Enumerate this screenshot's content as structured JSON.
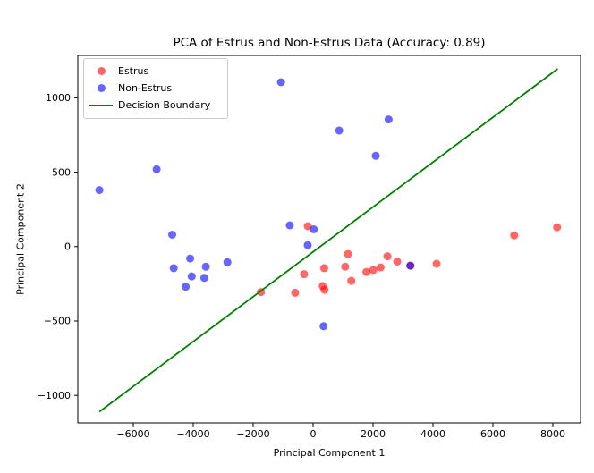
{
  "figure": {
    "background": "#ffffff"
  },
  "chart_data": {
    "type": "scatter",
    "title": "PCA of Estrus and Non-Estrus Data (Accuracy: 0.89)",
    "xlabel": "Principal Component 1",
    "ylabel": "Principal Component 2",
    "xlim": [
      -7850,
      8925
    ],
    "ylim": [
      -1185,
      1285
    ],
    "xticks": [
      -6000,
      -4000,
      -2000,
      0,
      2000,
      4000,
      6000,
      8000
    ],
    "xtick_labels": [
      "−6000",
      "−4000",
      "−2000",
      "0",
      "2000",
      "4000",
      "6000",
      "8000"
    ],
    "yticks": [
      -1000,
      -500,
      0,
      500,
      1000
    ],
    "ytick_labels": [
      "−1000",
      "−500",
      "0",
      "500",
      "1000"
    ],
    "grid": false,
    "legend_position": "upper-left",
    "marker_alpha": 0.6,
    "marker_radius": 4.5,
    "series": [
      {
        "name": "Estrus",
        "color": "#ff0000",
        "marker": "circle",
        "points": [
          [
            -1740,
            -305
          ],
          [
            -600,
            -310
          ],
          [
            -300,
            -185
          ],
          [
            -180,
            137
          ],
          [
            320,
            -265
          ],
          [
            370,
            -145
          ],
          [
            380,
            -290
          ],
          [
            1070,
            -135
          ],
          [
            1165,
            -50
          ],
          [
            1275,
            -230
          ],
          [
            1780,
            -170
          ],
          [
            2010,
            -157
          ],
          [
            2250,
            -140
          ],
          [
            2480,
            -65
          ],
          [
            2805,
            -100
          ],
          [
            3245,
            -128
          ],
          [
            4120,
            -115
          ],
          [
            6710,
            75
          ],
          [
            8140,
            130
          ]
        ]
      },
      {
        "name": "Non-Estrus",
        "color": "#0000ff",
        "marker": "circle",
        "points": [
          [
            -7130,
            380
          ],
          [
            -5220,
            520
          ],
          [
            -4700,
            80
          ],
          [
            -4650,
            -145
          ],
          [
            -4250,
            -270
          ],
          [
            -4100,
            -80
          ],
          [
            -4050,
            -200
          ],
          [
            -3630,
            -210
          ],
          [
            -3580,
            -135
          ],
          [
            -2860,
            -105
          ],
          [
            -1070,
            1105
          ],
          [
            -780,
            143
          ],
          [
            -180,
            10
          ],
          [
            20,
            116
          ],
          [
            350,
            -535
          ],
          [
            870,
            780
          ],
          [
            2090,
            610
          ],
          [
            2520,
            855
          ],
          [
            3245,
            -128
          ]
        ]
      }
    ],
    "boundary": {
      "name": "Decision Boundary",
      "color": "#008000",
      "width": 1.8,
      "points": [
        [
          -7130,
          -1110
        ],
        [
          8160,
          1195
        ]
      ]
    }
  },
  "legend": {
    "items": [
      {
        "label": "Estrus",
        "swatch": "dot",
        "color": "rgba(255,0,0,0.6)"
      },
      {
        "label": "Non-Estrus",
        "swatch": "dot",
        "color": "rgba(0,0,255,0.6)"
      },
      {
        "label": "Decision Boundary",
        "swatch": "line",
        "color": "#008000"
      }
    ]
  }
}
